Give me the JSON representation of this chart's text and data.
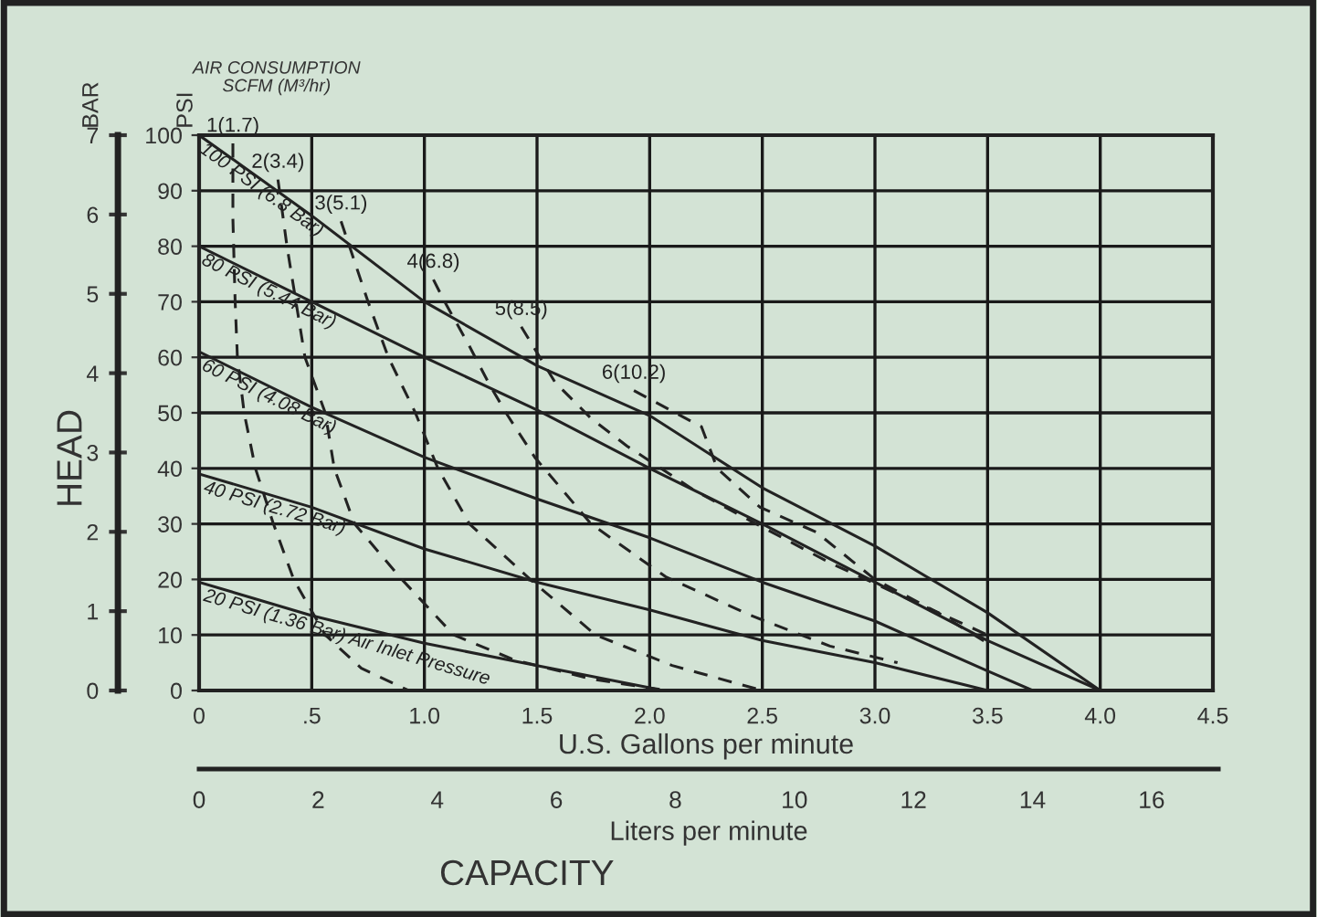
{
  "chart_data": {
    "type": "line",
    "xlabel": "U.S. Gallons per minute",
    "ylabel": "PSI",
    "y2label": "BAR",
    "x2label": "Liters per minute",
    "annotations": [
      "AIR CONSUMPTION\nSCFM (M³/hr)",
      "HEAD",
      "CAPACITY"
    ],
    "xlim": [
      0,
      4.5
    ],
    "xticks": [
      0,
      {
        "value": 0.5,
        "label": ".5"
      },
      {
        "value": 1,
        "label": "1.0"
      },
      1.5,
      {
        "value": 2,
        "label": "2.0"
      },
      2.5,
      {
        "value": 3,
        "label": "3.0"
      },
      3.5,
      {
        "value": 4,
        "label": "4.0"
      },
      4.5
    ],
    "ylim": [
      0,
      100
    ],
    "yticks": [
      0,
      10,
      20,
      30,
      40,
      50,
      60,
      70,
      80,
      90,
      100
    ],
    "y2lim": [
      0,
      7
    ],
    "y2ticks": [
      0,
      1,
      2,
      3,
      4,
      5,
      6,
      7
    ],
    "x2lim": [
      0,
      17.03
    ],
    "x2ticks": [
      0,
      2,
      4,
      6,
      8,
      10,
      12,
      14,
      16
    ],
    "grid": true,
    "legend": false,
    "marker": "none",
    "series": [
      {
        "name": "100 PSI (6.8 Bar)",
        "color": "#222222",
        "line_style": "solid",
        "x": [
          0,
          0.5,
          1.0,
          1.5,
          2.0,
          2.5,
          3.0,
          3.5,
          4.0
        ],
        "values": [
          100,
          85.5,
          70,
          58.5,
          49.5,
          36.5,
          26,
          14,
          0
        ]
      },
      {
        "name": "80 PSI (5.44 Bar)",
        "color": "#222222",
        "line_style": "solid",
        "x": [
          0,
          0.5,
          1.0,
          1.5,
          2.0,
          2.5,
          3.0,
          3.5,
          4.0
        ],
        "values": [
          80,
          70,
          60,
          50.5,
          40,
          30,
          19.5,
          9,
          0
        ]
      },
      {
        "name": "60 PSI (4.08 Bar)",
        "color": "#222222",
        "line_style": "solid",
        "x": [
          0,
          0.5,
          1.0,
          1.5,
          2.0,
          2.5,
          3.0,
          3.5,
          3.7
        ],
        "values": [
          61,
          51,
          42,
          34.5,
          27.5,
          19.5,
          12.5,
          3.5,
          0
        ]
      },
      {
        "name": "40 PSI (2.72 Bar)",
        "color": "#222222",
        "line_style": "solid",
        "x": [
          0,
          0.5,
          1.0,
          1.5,
          2.0,
          2.5,
          3.0,
          3.5
        ],
        "values": [
          39,
          33,
          25.5,
          19.5,
          14.5,
          9,
          5,
          0
        ]
      },
      {
        "name": "20 PSI (1.36 Bar) Air Inlet Pressure",
        "color": "#222222",
        "line_style": "solid",
        "x": [
          0,
          0.5,
          1.0,
          1.5,
          2.0,
          2.05
        ],
        "values": [
          19.5,
          13.5,
          8.5,
          4.5,
          0.5,
          0
        ]
      },
      {
        "name": "1(1.7)",
        "color": "#222222",
        "line_style": "dashed",
        "x": [
          0.15,
          0.15,
          0.16,
          0.17,
          0.2,
          0.25,
          0.33,
          0.42,
          0.56,
          0.72,
          0.93
        ],
        "values": [
          98.5,
          85,
          70,
          60,
          50,
          40,
          30,
          20,
          10,
          4,
          0
        ]
      },
      {
        "name": "2(3.4)",
        "color": "#222222",
        "line_style": "dashed",
        "x": [
          0.35,
          0.39,
          0.43,
          0.47,
          0.56,
          0.6,
          0.69,
          0.9,
          1.13,
          1.4,
          1.75,
          2.08
        ],
        "values": [
          92,
          80,
          70,
          60,
          50,
          40,
          30,
          20,
          10,
          5.5,
          2,
          0
        ]
      },
      {
        "name": "3(5.1)",
        "color": "#222222",
        "line_style": "dashed",
        "x": [
          0.63,
          0.75,
          0.84,
          0.96,
          1.06,
          1.2,
          1.47,
          1.76,
          2.1,
          2.5
        ],
        "values": [
          84.5,
          70,
          60,
          50,
          40,
          30,
          20,
          10,
          4.5,
          0
        ]
      },
      {
        "name": "4(6.8)",
        "color": "#222222",
        "line_style": "dashed",
        "x": [
          1.04,
          1.09,
          1.2,
          1.29,
          1.37,
          1.49,
          1.74,
          2.07,
          2.45,
          2.8,
          3.1
        ],
        "values": [
          74,
          70,
          62,
          55,
          49.5,
          42,
          30,
          20.5,
          13.5,
          8,
          5
        ]
      },
      {
        "name": "5(8.5)",
        "color": "#222222",
        "line_style": "dashed",
        "x": [
          1.43,
          1.58,
          1.74,
          1.9,
          2.2,
          2.45,
          2.8,
          3.2,
          3.5
        ],
        "values": [
          65.5,
          55.5,
          49,
          44,
          36,
          30.5,
          23,
          15.5,
          10
        ]
      },
      {
        "name": "6(10.2)",
        "color": "#222222",
        "line_style": "dashed",
        "x": [
          1.93,
          2.23,
          2.3,
          2.49,
          2.74,
          3.0,
          3.28,
          3.5
        ],
        "values": [
          54,
          47.5,
          40,
          33,
          28.5,
          20,
          14,
          8.5
        ]
      }
    ]
  }
}
